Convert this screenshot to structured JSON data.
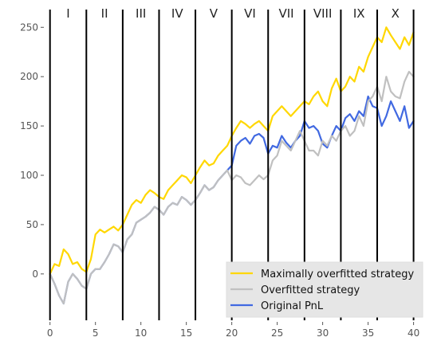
{
  "chart_data": {
    "type": "line",
    "title": "",
    "xlabel": "",
    "ylabel": "",
    "xlim": [
      -0.5,
      41
    ],
    "ylim": [
      -47,
      268
    ],
    "x_ticks": [
      0,
      5,
      10,
      15,
      20,
      25,
      30,
      35,
      40
    ],
    "y_ticks": [
      0,
      50,
      100,
      150,
      200,
      250
    ],
    "grid": false,
    "legend_position": "lower-right",
    "period_boundaries": [
      0,
      4,
      8,
      12,
      16,
      20,
      24,
      28,
      32,
      36,
      40
    ],
    "period_labels": [
      "I",
      "II",
      "III",
      "IV",
      "V",
      "VI",
      "VII",
      "VIII",
      "IX",
      "X"
    ],
    "series": [
      {
        "name": "Original PnL",
        "color": "#4169e1",
        "x": [
          0,
          0.5,
          1,
          1.5,
          2,
          2.5,
          3,
          3.5,
          4,
          4.5,
          5,
          5.5,
          6,
          6.5,
          7,
          7.5,
          8,
          8.5,
          9,
          9.5,
          10,
          10.5,
          11,
          11.5,
          12,
          12.5,
          13,
          13.5,
          14,
          14.5,
          15,
          15.5,
          16,
          16.5,
          17,
          17.5,
          18,
          18.5,
          19,
          19.5,
          20,
          20.5,
          21,
          21.5,
          22,
          22.5,
          23,
          23.5,
          24,
          24.5,
          25,
          25.5,
          26,
          26.5,
          27,
          27.5,
          28,
          28.5,
          29,
          29.5,
          30,
          30.5,
          31,
          31.5,
          32,
          32.5,
          33,
          33.5,
          34,
          34.5,
          35,
          35.5,
          36,
          36.5,
          37,
          37.5,
          38,
          38.5,
          39,
          39.5,
          40
        ],
        "values": [
          0,
          -10,
          -22,
          -30,
          -8,
          0,
          -5,
          -12,
          -15,
          0,
          5,
          5,
          12,
          20,
          30,
          28,
          22,
          35,
          40,
          52,
          55,
          58,
          62,
          68,
          65,
          60,
          68,
          72,
          70,
          78,
          75,
          70,
          75,
          82,
          90,
          85,
          88,
          95,
          100,
          105,
          110,
          130,
          135,
          138,
          132,
          140,
          142,
          138,
          122,
          130,
          128,
          140,
          133,
          128,
          135,
          140,
          155,
          148,
          150,
          145,
          132,
          128,
          140,
          150,
          145,
          158,
          162,
          155,
          165,
          160,
          180,
          170,
          168,
          150,
          160,
          175,
          165,
          155,
          170,
          148,
          155
        ]
      },
      {
        "name": "Overfitted strategy",
        "color": "#c0c0c0",
        "x": [
          0,
          0.5,
          1,
          1.5,
          2,
          2.5,
          3,
          3.5,
          4,
          4.5,
          5,
          5.5,
          6,
          6.5,
          7,
          7.5,
          8,
          8.5,
          9,
          9.5,
          10,
          10.5,
          11,
          11.5,
          12,
          12.5,
          13,
          13.5,
          14,
          14.5,
          15,
          15.5,
          16,
          16.5,
          17,
          17.5,
          18,
          18.5,
          19,
          19.5,
          20,
          20.5,
          21,
          21.5,
          22,
          22.5,
          23,
          23.5,
          24,
          24.5,
          25,
          25.5,
          26,
          26.5,
          27,
          27.5,
          28,
          28.5,
          29,
          29.5,
          30,
          30.5,
          31,
          31.5,
          32,
          32.5,
          33,
          33.5,
          34,
          34.5,
          35,
          35.5,
          36,
          36.5,
          37,
          37.5,
          38,
          38.5,
          39,
          39.5,
          40
        ],
        "values": [
          0,
          -10,
          -22,
          -30,
          -8,
          0,
          -5,
          -12,
          -15,
          0,
          5,
          5,
          12,
          20,
          30,
          28,
          22,
          35,
          40,
          52,
          55,
          58,
          62,
          68,
          65,
          60,
          68,
          72,
          70,
          78,
          75,
          70,
          75,
          82,
          90,
          85,
          88,
          95,
          100,
          105,
          95,
          100,
          98,
          92,
          90,
          95,
          100,
          96,
          100,
          115,
          120,
          135,
          130,
          125,
          135,
          145,
          135,
          125,
          125,
          120,
          135,
          130,
          140,
          135,
          145,
          150,
          140,
          145,
          160,
          150,
          175,
          180,
          190,
          175,
          200,
          185,
          180,
          178,
          195,
          205,
          200
        ]
      },
      {
        "name": "Maximally overfitted strategy",
        "color": "#ffd700",
        "x": [
          0,
          0.5,
          1,
          1.5,
          2,
          2.5,
          3,
          3.5,
          4,
          4.5,
          5,
          5.5,
          6,
          6.5,
          7,
          7.5,
          8,
          8.5,
          9,
          9.5,
          10,
          10.5,
          11,
          11.5,
          12,
          12.5,
          13,
          13.5,
          14,
          14.5,
          15,
          15.5,
          16,
          16.5,
          17,
          17.5,
          18,
          18.5,
          19,
          19.5,
          20,
          20.5,
          21,
          21.5,
          22,
          22.5,
          23,
          23.5,
          24,
          24.5,
          25,
          25.5,
          26,
          26.5,
          27,
          27.5,
          28,
          28.5,
          29,
          29.5,
          30,
          30.5,
          31,
          31.5,
          32,
          32.5,
          33,
          33.5,
          34,
          34.5,
          35,
          35.5,
          36,
          36.5,
          37,
          37.5,
          38,
          38.5,
          39,
          39.5,
          40
        ],
        "values": [
          0,
          10,
          8,
          25,
          20,
          10,
          12,
          5,
          2,
          15,
          40,
          45,
          42,
          45,
          48,
          44,
          50,
          60,
          70,
          75,
          72,
          80,
          85,
          82,
          78,
          76,
          85,
          90,
          95,
          100,
          98,
          92,
          100,
          108,
          115,
          110,
          112,
          120,
          125,
          130,
          140,
          148,
          155,
          152,
          148,
          152,
          155,
          150,
          145,
          160,
          165,
          170,
          165,
          160,
          165,
          170,
          175,
          172,
          180,
          185,
          175,
          170,
          188,
          198,
          185,
          190,
          200,
          195,
          210,
          205,
          220,
          230,
          240,
          235,
          250,
          242,
          235,
          228,
          240,
          232,
          245
        ]
      }
    ]
  }
}
